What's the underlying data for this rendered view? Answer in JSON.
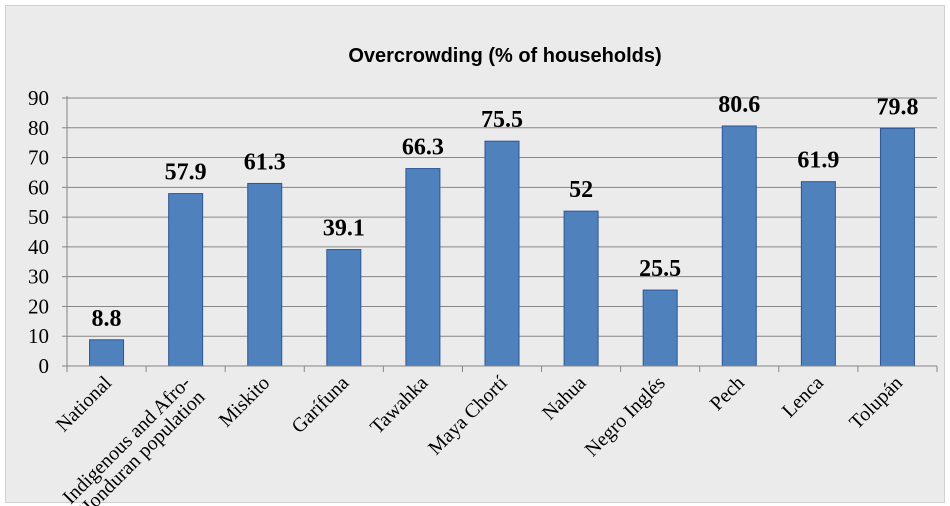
{
  "chart_data": {
    "type": "bar",
    "title": "Overcrowding (% of households)",
    "categories": [
      "National",
      "Indigenous and Afro-\nHonduran population",
      "Miskito",
      "Garífuna",
      "Tawahka",
      "Maya Chortí",
      "Nahua",
      "Negro Inglés",
      "Pech",
      "Lenca",
      "Tolupán"
    ],
    "values": [
      8.8,
      57.9,
      61.3,
      39.1,
      66.3,
      75.5,
      52,
      25.5,
      80.6,
      61.9,
      79.8
    ],
    "data_labels": [
      "8.8",
      "57.9",
      "61.3",
      "39.1",
      "66.3",
      "75.5",
      "52",
      "25.5",
      "80.6",
      "61.9",
      "79.8"
    ],
    "yticks": [
      "0",
      "10",
      "20",
      "30",
      "40",
      "50",
      "60",
      "70",
      "80",
      "90"
    ],
    "ylim": [
      0,
      90
    ],
    "grid": true,
    "legend": "none",
    "bar_color": "#4f81bd",
    "bar_edge_color": "#2f5597"
  }
}
